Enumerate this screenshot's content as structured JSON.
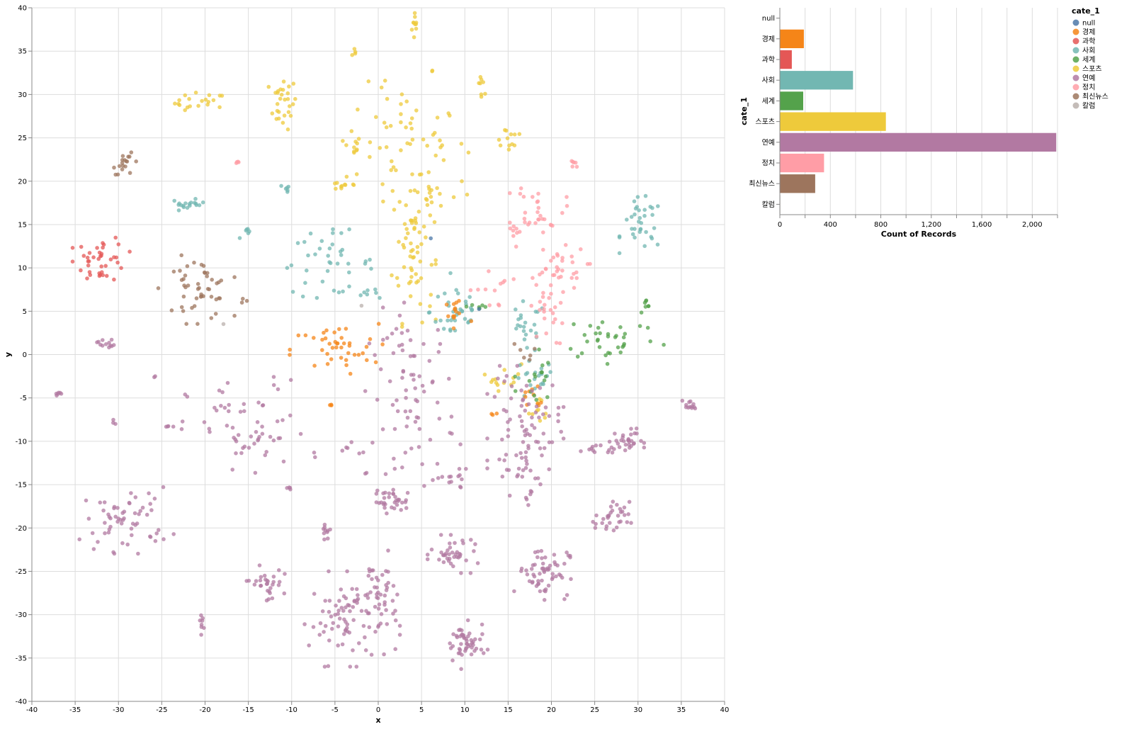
{
  "chart_data": [
    {
      "type": "scatter",
      "xlabel": "x",
      "ylabel": "y",
      "xlim": [
        -40,
        40
      ],
      "ylim": [
        -40,
        40
      ],
      "xticks": [
        "-40",
        "-35",
        "-30",
        "-25",
        "-20",
        "-15",
        "-10",
        "-5",
        "0",
        "5",
        "10",
        "15",
        "20",
        "25",
        "30",
        "35",
        "40"
      ],
      "yticks": [
        "40",
        "35",
        "30",
        "25",
        "20",
        "15",
        "10",
        "5",
        "0",
        "-5",
        "-10",
        "-15",
        "-20",
        "-25",
        "-30",
        "-35",
        "-40"
      ],
      "grid": true,
      "color_field": "cate_1",
      "clusters": [
        {
          "cate_1": "스포츠",
          "cx": 4.3,
          "cy": 38.0,
          "sx": 0.2,
          "sy": 1.0,
          "n": 10
        },
        {
          "cate_1": "스포츠",
          "cx": -3.0,
          "cy": 35.0,
          "sx": 0.4,
          "sy": 0.4,
          "n": 4
        },
        {
          "cate_1": "스포츠",
          "cx": 6.0,
          "cy": 32.5,
          "sx": 0.2,
          "sy": 0.2,
          "n": 2
        },
        {
          "cate_1": "스포츠",
          "cx": 12.0,
          "cy": 31.5,
          "sx": 0.3,
          "sy": 0.8,
          "n": 8
        },
        {
          "cate_1": "스포츠",
          "cx": -20.5,
          "cy": 29.0,
          "sx": 1.5,
          "sy": 0.6,
          "n": 20
        },
        {
          "cate_1": "스포츠",
          "cx": -11.0,
          "cy": 29.0,
          "sx": 0.8,
          "sy": 1.5,
          "n": 28
        },
        {
          "cate_1": "스포츠",
          "cx": 3.0,
          "cy": 25.0,
          "sx": 3.5,
          "sy": 3.0,
          "n": 50
        },
        {
          "cate_1": "스포츠",
          "cx": -3.0,
          "cy": 24.0,
          "sx": 0.5,
          "sy": 0.6,
          "n": 10
        },
        {
          "cate_1": "스포츠",
          "cx": 15.0,
          "cy": 25.0,
          "sx": 1.0,
          "sy": 0.8,
          "n": 12
        },
        {
          "cate_1": "스포츠",
          "cx": -4.0,
          "cy": 19.5,
          "sx": 1.0,
          "sy": 0.3,
          "n": 10
        },
        {
          "cate_1": "스포츠",
          "cx": 6.0,
          "cy": 18.5,
          "sx": 2.5,
          "sy": 1.0,
          "n": 22
        },
        {
          "cate_1": "스포츠",
          "cx": 4.0,
          "cy": 12.0,
          "sx": 1.2,
          "sy": 4.0,
          "n": 60
        },
        {
          "cate_1": "스포츠",
          "cx": 14.5,
          "cy": -2.5,
          "sx": 1.0,
          "sy": 0.8,
          "n": 14
        },
        {
          "cate_1": "스포츠",
          "cx": 19.0,
          "cy": -6.5,
          "sx": 0.8,
          "sy": 0.8,
          "n": 10
        },
        {
          "cate_1": "사회",
          "cx": -22.0,
          "cy": 17.3,
          "sx": 1.0,
          "sy": 0.3,
          "n": 18
        },
        {
          "cate_1": "사회",
          "cx": -10.5,
          "cy": 19.2,
          "sx": 0.4,
          "sy": 0.2,
          "n": 6
        },
        {
          "cate_1": "사회",
          "cx": -6.0,
          "cy": 10.5,
          "sx": 2.8,
          "sy": 1.8,
          "n": 40
        },
        {
          "cate_1": "사회",
          "cx": -15.0,
          "cy": 14.0,
          "sx": 0.5,
          "sy": 0.3,
          "n": 6
        },
        {
          "cate_1": "사회",
          "cx": -1.0,
          "cy": 7.2,
          "sx": 0.7,
          "sy": 0.3,
          "n": 6
        },
        {
          "cate_1": "사회",
          "cx": 9.0,
          "cy": 5.0,
          "sx": 1.5,
          "sy": 2.0,
          "n": 36
        },
        {
          "cate_1": "사회",
          "cx": 17.0,
          "cy": 3.0,
          "sx": 1.2,
          "sy": 1.5,
          "n": 22
        },
        {
          "cate_1": "사회",
          "cx": 18.0,
          "cy": -3.0,
          "sx": 1.2,
          "sy": 1.2,
          "n": 20
        },
        {
          "cate_1": "사회",
          "cx": 30.5,
          "cy": 15.0,
          "sx": 1.2,
          "sy": 1.5,
          "n": 34
        },
        {
          "cate_1": "과학",
          "cx": -32.0,
          "cy": 11.0,
          "sx": 1.5,
          "sy": 1.3,
          "n": 40
        },
        {
          "cate_1": "최신뉴스",
          "cx": -29.0,
          "cy": 22.0,
          "sx": 0.8,
          "sy": 0.6,
          "n": 18
        },
        {
          "cate_1": "최신뉴스",
          "cx": -21.0,
          "cy": 7.5,
          "sx": 2.0,
          "sy": 1.8,
          "n": 48
        },
        {
          "cate_1": "최신뉴스",
          "cx": -15.5,
          "cy": 6.5,
          "sx": 0.2,
          "sy": 0.3,
          "n": 3
        },
        {
          "cate_1": "최신뉴스",
          "cx": 17.0,
          "cy": 0.5,
          "sx": 0.8,
          "sy": 0.5,
          "n": 6
        },
        {
          "cate_1": "경제",
          "cx": -5.0,
          "cy": 0.5,
          "sx": 2.5,
          "sy": 1.5,
          "n": 42
        },
        {
          "cate_1": "경제",
          "cx": 9.0,
          "cy": 4.5,
          "sx": 1.0,
          "sy": 1.5,
          "n": 14
        },
        {
          "cate_1": "경제",
          "cx": -5.5,
          "cy": -5.8,
          "sx": 0.3,
          "sy": 0.1,
          "n": 3
        },
        {
          "cate_1": "경제",
          "cx": 13.0,
          "cy": -6.8,
          "sx": 0.4,
          "sy": 0.3,
          "n": 3
        },
        {
          "cate_1": "경제",
          "cx": 18.0,
          "cy": -5.0,
          "sx": 1.0,
          "sy": 1.0,
          "n": 10
        },
        {
          "cate_1": "세계",
          "cx": 27.0,
          "cy": 2.0,
          "sx": 2.8,
          "sy": 1.4,
          "n": 34
        },
        {
          "cate_1": "세계",
          "cx": 31.0,
          "cy": 5.5,
          "sx": 0.5,
          "sy": 0.4,
          "n": 7
        },
        {
          "cate_1": "세계",
          "cx": 11.5,
          "cy": 5.5,
          "sx": 0.7,
          "sy": 0.3,
          "n": 6
        },
        {
          "cate_1": "세계",
          "cx": 18.0,
          "cy": -3.0,
          "sx": 1.0,
          "sy": 2.0,
          "n": 16
        },
        {
          "cate_1": "정치",
          "cx": 18.5,
          "cy": 17.0,
          "sx": 1.5,
          "sy": 1.5,
          "n": 32
        },
        {
          "cate_1": "정치",
          "cx": 22.5,
          "cy": 21.8,
          "sx": 0.3,
          "sy": 0.4,
          "n": 6
        },
        {
          "cate_1": "정치",
          "cx": -16.5,
          "cy": 22.2,
          "sx": 0.3,
          "sy": 0.1,
          "n": 4
        },
        {
          "cate_1": "정치",
          "cx": 20.5,
          "cy": 10.0,
          "sx": 1.8,
          "sy": 1.2,
          "n": 30
        },
        {
          "cate_1": "정치",
          "cx": 19.5,
          "cy": 5.0,
          "sx": 1.0,
          "sy": 2.0,
          "n": 26
        },
        {
          "cate_1": "정치",
          "cx": 13.0,
          "cy": 7.5,
          "sx": 1.2,
          "sy": 1.2,
          "n": 12
        },
        {
          "cate_1": "정치",
          "cx": 15.5,
          "cy": 14.0,
          "sx": 0.3,
          "sy": 1.2,
          "n": 5
        },
        {
          "cate_1": "null",
          "cx": 6.2,
          "cy": 13.5,
          "sx": 0.1,
          "sy": 0.1,
          "n": 1
        },
        {
          "cate_1": "null",
          "cx": 11.8,
          "cy": 5.2,
          "sx": 0.1,
          "sy": 0.1,
          "n": 1
        },
        {
          "cate_1": "칼럼",
          "cx": -18.0,
          "cy": 3.5,
          "sx": 0.1,
          "sy": 0.1,
          "n": 1
        },
        {
          "cate_1": "칼럼",
          "cx": -2.0,
          "cy": 5.5,
          "sx": 0.1,
          "sy": 0.1,
          "n": 1
        },
        {
          "cate_1": "연예",
          "cx": -31.5,
          "cy": 1.3,
          "sx": 0.5,
          "sy": 0.3,
          "n": 12
        },
        {
          "cate_1": "연예",
          "cx": -37.0,
          "cy": -4.5,
          "sx": 0.3,
          "sy": 0.1,
          "n": 6
        },
        {
          "cate_1": "연예",
          "cx": -15.0,
          "cy": -9.0,
          "sx": 3.5,
          "sy": 3.0,
          "n": 60
        },
        {
          "cate_1": "연예",
          "cx": -29.0,
          "cy": -19.0,
          "sx": 2.5,
          "sy": 1.8,
          "n": 60
        },
        {
          "cate_1": "연예",
          "cx": -13.0,
          "cy": -26.5,
          "sx": 1.0,
          "sy": 1.0,
          "n": 30
        },
        {
          "cate_1": "연예",
          "cx": -20.5,
          "cy": -31.0,
          "sx": 0.4,
          "sy": 0.6,
          "n": 8
        },
        {
          "cate_1": "연예",
          "cx": -6.0,
          "cy": -20.0,
          "sx": 0.5,
          "sy": 0.6,
          "n": 10
        },
        {
          "cate_1": "연예",
          "cx": 1.5,
          "cy": -17.0,
          "sx": 1.0,
          "sy": 0.6,
          "n": 30
        },
        {
          "cate_1": "연예",
          "cx": -3.0,
          "cy": -11.0,
          "sx": 2.0,
          "sy": 0.6,
          "n": 8
        },
        {
          "cate_1": "연예",
          "cx": 4.0,
          "cy": -5.0,
          "sx": 2.5,
          "sy": 5.0,
          "n": 80
        },
        {
          "cate_1": "연예",
          "cx": -3.0,
          "cy": -30.5,
          "sx": 2.5,
          "sy": 2.5,
          "n": 90
        },
        {
          "cate_1": "연예",
          "cx": 0.0,
          "cy": -27.0,
          "sx": 1.0,
          "sy": 2.0,
          "n": 30
        },
        {
          "cate_1": "연예",
          "cx": 9.0,
          "cy": -23.0,
          "sx": 1.5,
          "sy": 1.0,
          "n": 40
        },
        {
          "cate_1": "연예",
          "cx": 8.5,
          "cy": -14.5,
          "sx": 1.0,
          "sy": 0.6,
          "n": 14
        },
        {
          "cate_1": "연예",
          "cx": 10.0,
          "cy": -33.5,
          "sx": 1.2,
          "sy": 1.3,
          "n": 50
        },
        {
          "cate_1": "연예",
          "cx": 17.0,
          "cy": -9.0,
          "sx": 2.0,
          "sy": 3.5,
          "n": 90
        },
        {
          "cate_1": "연예",
          "cx": 19.0,
          "cy": -25.0,
          "sx": 1.5,
          "sy": 1.5,
          "n": 60
        },
        {
          "cate_1": "연예",
          "cx": 17.5,
          "cy": -16.5,
          "sx": 0.2,
          "sy": 0.5,
          "n": 4
        },
        {
          "cate_1": "연예",
          "cx": 28.5,
          "cy": -10.0,
          "sx": 1.0,
          "sy": 0.7,
          "n": 30
        },
        {
          "cate_1": "연예",
          "cx": 25.0,
          "cy": -11.0,
          "sx": 1.2,
          "sy": 0.3,
          "n": 12
        },
        {
          "cate_1": "연예",
          "cx": 27.0,
          "cy": -19.0,
          "sx": 1.0,
          "sy": 1.0,
          "n": 32
        },
        {
          "cate_1": "연예",
          "cx": 36.0,
          "cy": -5.8,
          "sx": 0.4,
          "sy": 0.3,
          "n": 12
        },
        {
          "cate_1": "연예",
          "cx": -24.5,
          "cy": -8.3,
          "sx": 0.4,
          "sy": 0.1,
          "n": 4
        },
        {
          "cate_1": "연예",
          "cx": -30.5,
          "cy": -8.0,
          "sx": 0.2,
          "sy": 0.3,
          "n": 3
        },
        {
          "cate_1": "연예",
          "cx": -10.5,
          "cy": -15.5,
          "sx": 0.4,
          "sy": 0.1,
          "n": 4
        },
        {
          "cate_1": "연예",
          "cx": -25.8,
          "cy": -2.5,
          "sx": 0.1,
          "sy": 0.2,
          "n": 2
        }
      ]
    },
    {
      "type": "bar",
      "orientation": "horizontal",
      "xlabel": "Count of Records",
      "ylabel": "cate_1",
      "xlim": [
        0,
        2200
      ],
      "xticks": [
        "0",
        "400",
        "800",
        "1,200",
        "1,600",
        "2,000"
      ],
      "categories": [
        "null",
        "경제",
        "과학",
        "사회",
        "세계",
        "스포츠",
        "연예",
        "정치",
        "최신뉴스",
        "칼럼"
      ],
      "values": [
        3,
        190,
        95,
        580,
        185,
        840,
        2190,
        350,
        280,
        4
      ],
      "grid": true
    }
  ],
  "legend": {
    "title": "cate_1",
    "position": "right",
    "entries": [
      "null",
      "경제",
      "과학",
      "사회",
      "세계",
      "스포츠",
      "연예",
      "정치",
      "최신뉴스",
      "칼럼"
    ]
  },
  "colors": {
    "null": "#4c78a8",
    "경제": "#f58518",
    "과학": "#e45756",
    "사회": "#72b7b2",
    "세계": "#54a24b",
    "스포츠": "#eeca3b",
    "연예": "#b279a2",
    "정치": "#ff9da6",
    "최신뉴스": "#9d755d",
    "칼럼": "#bab0ac"
  }
}
